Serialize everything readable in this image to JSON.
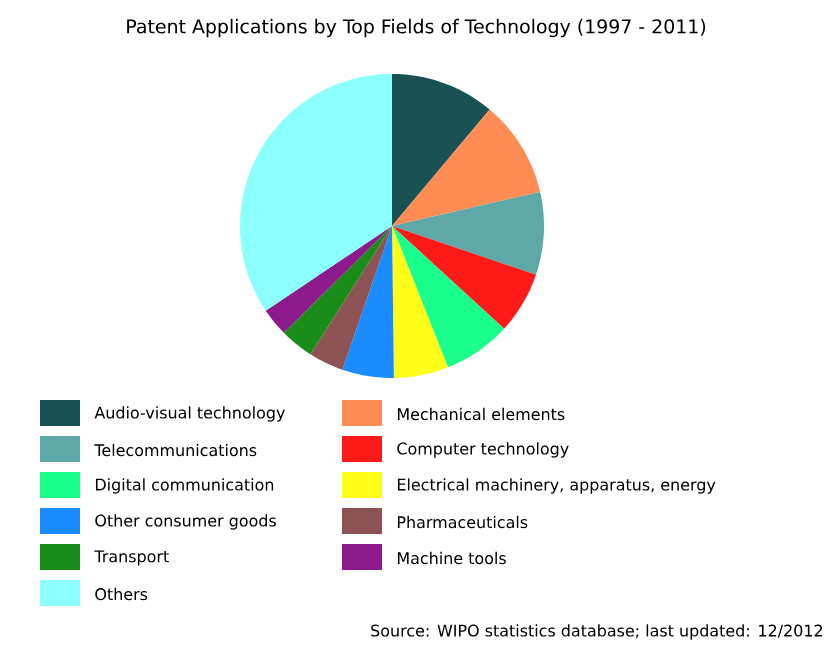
{
  "chart_data": {
    "type": "pie",
    "title": "Patent Applications by Top Fields of Technology (1997 - 2011)",
    "categories": [
      "Audio-visual technology",
      "Mechanical elements",
      "Telecommunications",
      "Computer technology",
      "Digital communication",
      "Electrical machinery, apparatus, energy",
      "Other consumer goods",
      "Pharmaceuticals",
      "Transport",
      "Machine tools",
      "Others"
    ],
    "values": [
      11.1,
      10.3,
      8.8,
      6.6,
      7.2,
      5.8,
      5.5,
      3.7,
      3.6,
      3.0,
      34.4
    ],
    "colors": [
      "#1a5254",
      "#ff8c55",
      "#5fa8a8",
      "#ff1a1a",
      "#1aff8c",
      "#ffff1a",
      "#1a8cff",
      "#8c5254",
      "#1a8c1a",
      "#8c1a8c",
      "#8cffff"
    ],
    "legend": "bottom",
    "annotations": [
      "Source: WIPO statistics database; last updated: 12/2012"
    ]
  }
}
